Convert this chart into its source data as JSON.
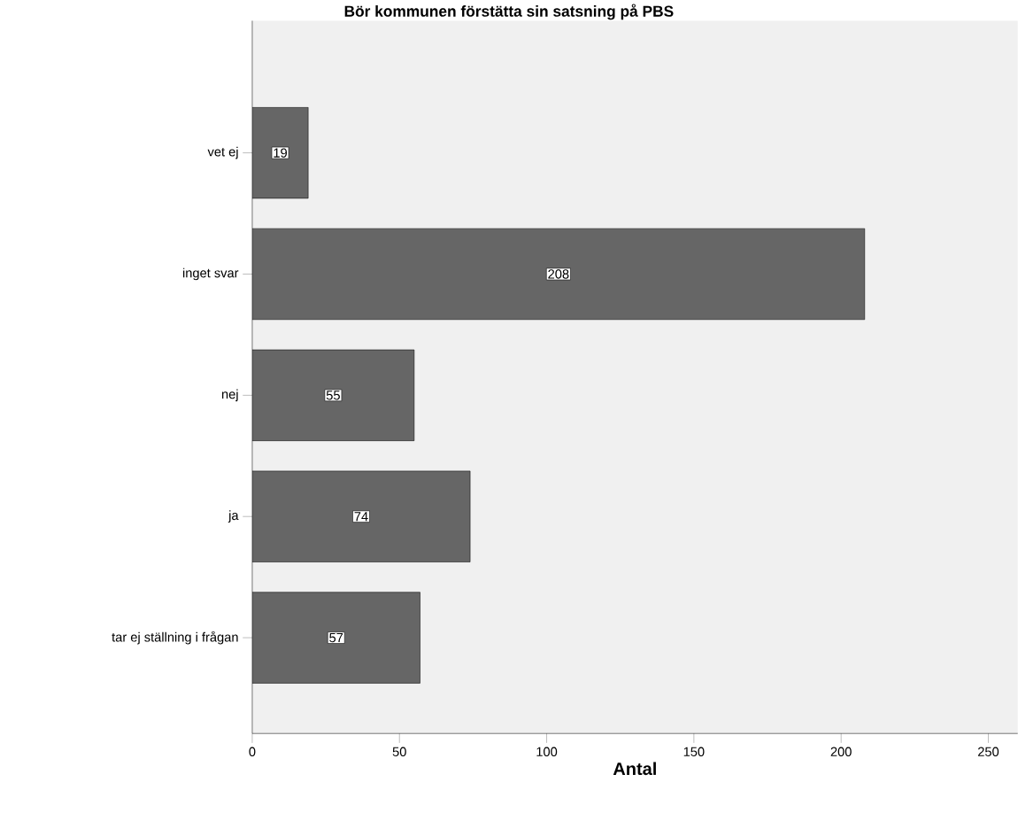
{
  "chart_data": {
    "type": "bar",
    "orientation": "horizontal",
    "title": "Bör kommunen förstätta sin satsning på PBS",
    "xlabel": "Antal",
    "categories": [
      "vet ej",
      "inget svar",
      "nej",
      "ja",
      "tar ej ställning i frågan"
    ],
    "values": [
      19,
      208,
      55,
      74,
      57
    ],
    "color": "#666666",
    "data_labels": true,
    "xlim": [
      0,
      260
    ],
    "xticks": [
      0,
      50,
      100,
      150,
      200,
      250
    ],
    "grid": false
  }
}
